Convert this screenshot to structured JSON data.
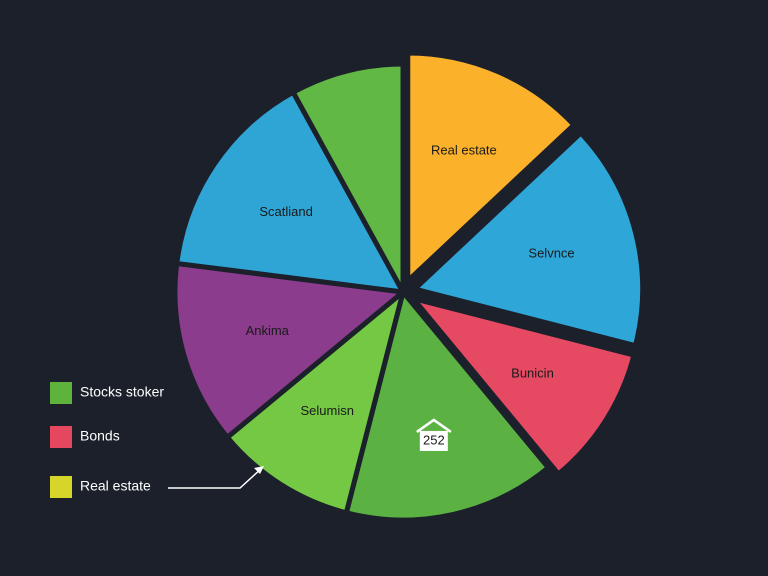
{
  "chart_data": {
    "type": "pie",
    "categories": [
      "Real estate",
      "Selvnce",
      "Bunicin",
      null,
      "Selumisn",
      "Ankima",
      "Scatliand",
      null
    ],
    "values": [
      13,
      16,
      10,
      15,
      10,
      13,
      15,
      8
    ],
    "colors": [
      "#FBB12A",
      "#2EA6D8",
      "#E64A63",
      "#5BB243",
      "#74C843",
      "#8B3C8C",
      "#2FA5D6",
      "#62B845"
    ],
    "explode": [
      true,
      true,
      true,
      false,
      false,
      false,
      false,
      false
    ],
    "annotation": "252",
    "legend": [
      {
        "name": "Stocks stoker",
        "color": "#5DB33B"
      },
      {
        "name": "Bonds",
        "color": "#E5475F"
      },
      {
        "name": "Real estate",
        "color": "#D6D62A"
      }
    ]
  }
}
